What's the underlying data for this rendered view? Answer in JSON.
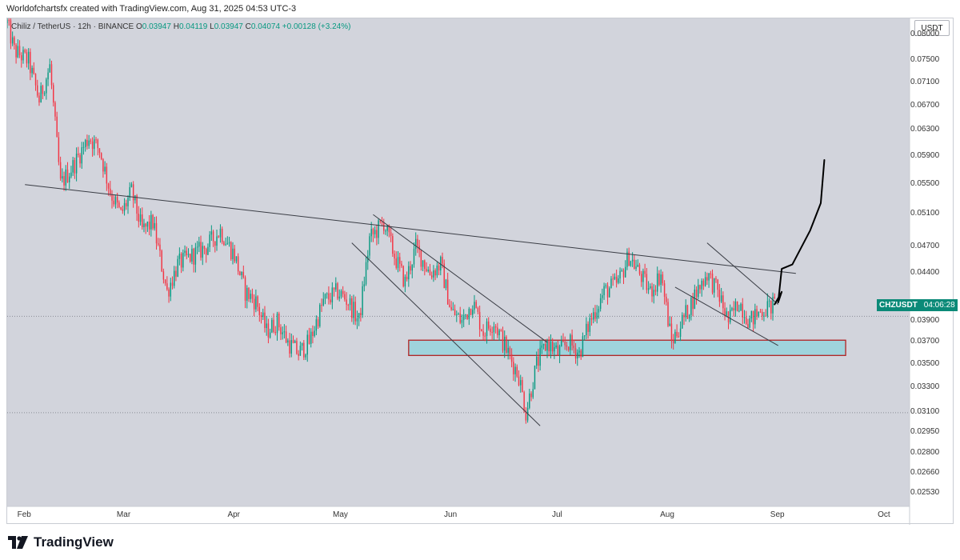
{
  "header": {
    "attribution": "Worldofchartsfx created with TradingView.com, Aug 31, 2025 04:53 UTC-3"
  },
  "symbol_bar": {
    "name": "Chiliz / TetherUS · 12h · BINANCE",
    "o_label": "O",
    "o_value": "0.03947",
    "h_label": "H",
    "h_value": "0.04119",
    "l_label": "L",
    "l_value": "0.03947",
    "c_label": "C",
    "c_value": "0.04074",
    "change": "+0.00128 (+3.24%)"
  },
  "currency": "USDT",
  "current_price": {
    "ticker": "CHZUSDT",
    "countdown": "04:06:28",
    "value": 0.04074
  },
  "footer": {
    "brand": "TradingView"
  },
  "colors": {
    "background": "#d2d4dc",
    "up": "#089981",
    "down": "#f23645",
    "label_bg": "#0b8a78",
    "zone_fill": "#9fd3dc",
    "zone_border": "#b22222"
  },
  "chart_data": {
    "type": "candlestick",
    "symbol": "CHZUSDT",
    "interval": "12h",
    "y_ticks": [
      "0.08000",
      "0.07500",
      "0.07100",
      "0.06700",
      "0.06300",
      "0.05900",
      "0.05500",
      "0.05100",
      "0.04700",
      "0.04400",
      "0.03900",
      "0.03700",
      "0.03500",
      "0.03300",
      "0.03100",
      "0.02950",
      "0.02800",
      "0.02660",
      "0.02530"
    ],
    "x_ticks": [
      "Feb",
      "Mar",
      "Apr",
      "May",
      "Jun",
      "Jul",
      "Aug",
      "Sep",
      "Oct"
    ],
    "ylim": [
      0.0245,
      0.0835
    ],
    "x_range": [
      "2025-01-27",
      "2025-10-08"
    ],
    "path_points": [
      [
        "2025-01-27",
        0.0825
      ],
      [
        "2025-01-29",
        0.077
      ],
      [
        "2025-02-02",
        0.075
      ],
      [
        "2025-02-05",
        0.068
      ],
      [
        "2025-02-08",
        0.074
      ],
      [
        "2025-02-11",
        0.055
      ],
      [
        "2025-02-15",
        0.058
      ],
      [
        "2025-02-19",
        0.062
      ],
      [
        "2025-02-22",
        0.06
      ],
      [
        "2025-02-25",
        0.054
      ],
      [
        "2025-02-28",
        0.051
      ],
      [
        "2025-03-03",
        0.054
      ],
      [
        "2025-03-06",
        0.049
      ],
      [
        "2025-03-09",
        0.05
      ],
      [
        "2025-03-13",
        0.042
      ],
      [
        "2025-03-16",
        0.045
      ],
      [
        "2025-03-20",
        0.046
      ],
      [
        "2025-03-24",
        0.047
      ],
      [
        "2025-03-28",
        0.049
      ],
      [
        "2025-04-01",
        0.046
      ],
      [
        "2025-04-04",
        0.042
      ],
      [
        "2025-04-07",
        0.041
      ],
      [
        "2025-04-10",
        0.038
      ],
      [
        "2025-04-13",
        0.039
      ],
      [
        "2025-04-16",
        0.037
      ],
      [
        "2025-04-19",
        0.036
      ],
      [
        "2025-04-22",
        0.037
      ],
      [
        "2025-04-26",
        0.041
      ],
      [
        "2025-04-30",
        0.042
      ],
      [
        "2025-05-03",
        0.041
      ],
      [
        "2025-05-06",
        0.039
      ],
      [
        "2025-05-09",
        0.048
      ],
      [
        "2025-05-13",
        0.05
      ],
      [
        "2025-05-16",
        0.046
      ],
      [
        "2025-05-19",
        0.043
      ],
      [
        "2025-05-22",
        0.047
      ],
      [
        "2025-05-26",
        0.044
      ],
      [
        "2025-05-29",
        0.045
      ],
      [
        "2025-06-01",
        0.04
      ],
      [
        "2025-06-04",
        0.039
      ],
      [
        "2025-06-07",
        0.041
      ],
      [
        "2025-06-10",
        0.038
      ],
      [
        "2025-06-13",
        0.039
      ],
      [
        "2025-06-17",
        0.036
      ],
      [
        "2025-06-20",
        0.034
      ],
      [
        "2025-06-22",
        0.031
      ],
      [
        "2025-06-25",
        0.035
      ],
      [
        "2025-06-28",
        0.037
      ],
      [
        "2025-07-01",
        0.036
      ],
      [
        "2025-07-04",
        0.037
      ],
      [
        "2025-07-07",
        0.036
      ],
      [
        "2025-07-10",
        0.039
      ],
      [
        "2025-07-14",
        0.042
      ],
      [
        "2025-07-18",
        0.043
      ],
      [
        "2025-07-21",
        0.046
      ],
      [
        "2025-07-24",
        0.044
      ],
      [
        "2025-07-27",
        0.042
      ],
      [
        "2025-07-30",
        0.044
      ],
      [
        "2025-08-02",
        0.037
      ],
      [
        "2025-08-05",
        0.039
      ],
      [
        "2025-08-09",
        0.042
      ],
      [
        "2025-08-12",
        0.044
      ],
      [
        "2025-08-15",
        0.042
      ],
      [
        "2025-08-18",
        0.039
      ],
      [
        "2025-08-21",
        0.041
      ],
      [
        "2025-08-24",
        0.039
      ],
      [
        "2025-08-27",
        0.04
      ],
      [
        "2025-08-31",
        0.0407
      ]
    ],
    "trendlines": [
      {
        "from": [
          "2025-02-01",
          0.055
        ],
        "to": [
          "2025-09-06",
          0.044
        ]
      },
      {
        "from": [
          "2025-05-10",
          0.051
        ],
        "to": [
          "2025-06-28",
          0.037
        ]
      },
      {
        "from": [
          "2025-05-04",
          0.0475
        ],
        "to": [
          "2025-06-26",
          0.03
        ]
      },
      {
        "from": [
          "2025-08-12",
          0.0475
        ],
        "to": [
          "2025-09-01",
          0.0407
        ]
      },
      {
        "from": [
          "2025-08-03",
          0.0425
        ],
        "to": [
          "2025-09-01",
          0.0367
        ]
      }
    ],
    "horizontal_lines": [
      0.0395,
      0.031
    ],
    "zone": {
      "from": "2025-05-20",
      "to": "2025-09-20",
      "top": 0.0372,
      "bottom": 0.0358
    },
    "projection": [
      [
        "2025-08-31",
        0.0407
      ],
      [
        "2025-09-02",
        0.042
      ],
      [
        "2025-09-01",
        0.0409
      ],
      [
        "2025-09-02",
        0.0445
      ],
      [
        "2025-09-05",
        0.045
      ],
      [
        "2025-09-10",
        0.049
      ],
      [
        "2025-09-13",
        0.0525
      ],
      [
        "2025-09-14",
        0.0585
      ]
    ]
  }
}
